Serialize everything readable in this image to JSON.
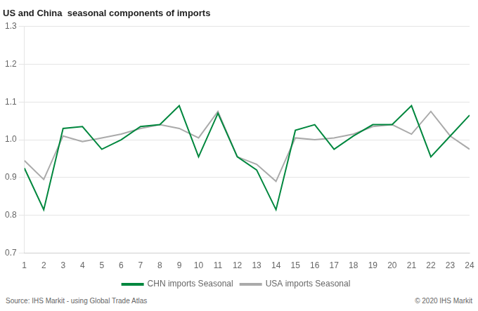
{
  "chart_data": {
    "type": "line",
    "title": "US and China  seasonal components of imports",
    "x": [
      1,
      2,
      3,
      4,
      5,
      6,
      7,
      8,
      9,
      10,
      11,
      12,
      13,
      14,
      15,
      16,
      17,
      18,
      19,
      20,
      21,
      22,
      23,
      24
    ],
    "series": [
      {
        "name": "CHN imports Seasonal",
        "color": "#00873E",
        "values": [
          0.925,
          0.815,
          1.03,
          1.035,
          0.975,
          1.0,
          1.035,
          1.04,
          1.09,
          0.955,
          1.07,
          0.955,
          0.92,
          0.815,
          1.025,
          1.04,
          0.975,
          1.01,
          1.04,
          1.04,
          1.09,
          0.955,
          1.01,
          1.065
        ]
      },
      {
        "name": "USA imports Seasonal",
        "color": "#AAAAAA",
        "values": [
          0.945,
          0.895,
          1.01,
          0.995,
          1.005,
          1.015,
          1.03,
          1.04,
          1.03,
          1.005,
          1.075,
          0.955,
          0.935,
          0.89,
          1.005,
          1.0,
          1.005,
          1.015,
          1.035,
          1.04,
          1.015,
          1.075,
          1.01,
          0.975
        ]
      }
    ],
    "xlim": [
      1,
      24
    ],
    "xticks": [
      1,
      2,
      3,
      4,
      5,
      6,
      7,
      8,
      9,
      10,
      11,
      12,
      13,
      14,
      15,
      16,
      17,
      18,
      19,
      20,
      21,
      22,
      23,
      24
    ],
    "ylim": [
      0.7,
      1.3
    ],
    "yticks": [
      0.7,
      0.8,
      0.9,
      {
        "value": 1.0,
        "label": "1.0"
      },
      1.1,
      1.2,
      1.3
    ],
    "grid": "y",
    "legend": "bottom",
    "annotations": [
      "Source: IHS Markit - using Global Trade Atlas",
      "© 2020 IHS Markit"
    ]
  }
}
